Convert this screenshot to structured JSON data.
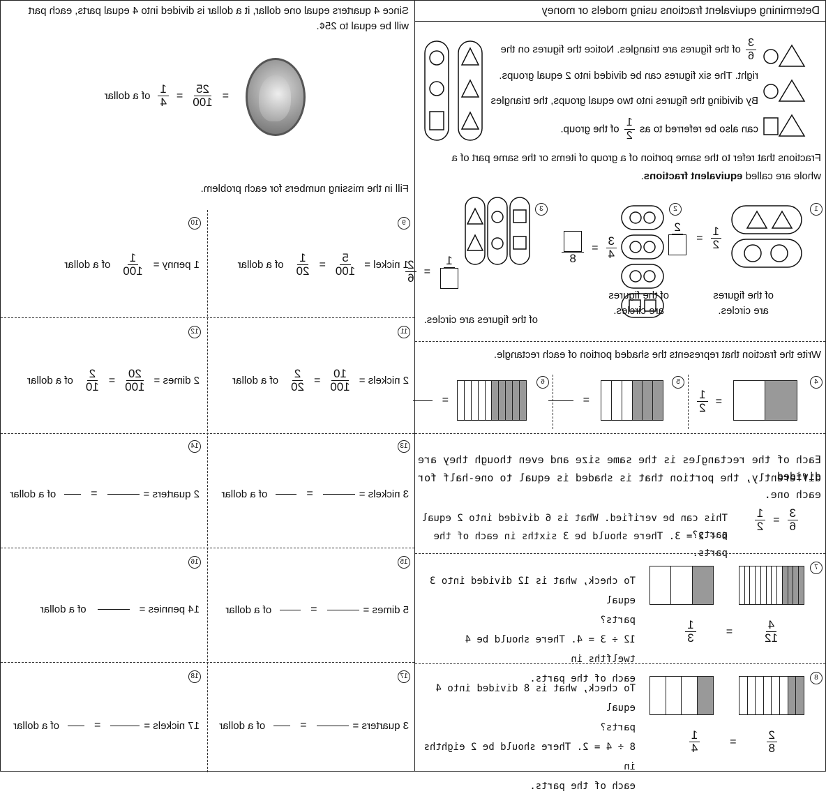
{
  "right": {
    "title": "Determining equivalent fractions using models or money",
    "intro1": {
      "n": "3",
      "d": "6",
      "text": "of the figures are triangles. Notice the figures on the"
    },
    "intro2": "right. The six figures can be divided into 2 equal groups.",
    "intro3": "By dividing the figures into two equal groups, the triangles",
    "intro4": {
      "pre": "can also be referred to as",
      "n": "1",
      "d": "2",
      "post": "of the group."
    },
    "def1": "Fractions that refer to the same portion of a group of items or the same part of a",
    "def2_pre": "whole are called",
    "def2_bold": "equivalent fractions",
    "def2_post": ".",
    "p1": {
      "num": "1",
      "n": "1",
      "d": "2",
      "eq": "=",
      "n2": "2",
      "cap1": "of the figures",
      "cap2": "are circles."
    },
    "p2": {
      "num": "2",
      "n": "3",
      "d": "4",
      "eq": "=",
      "d2": "8",
      "cap1": "of the figures",
      "cap2": "are circles."
    },
    "p3": {
      "num": "3",
      "n": "1",
      "eq": "=",
      "n2": "2",
      "d2": "6",
      "cap": "of the figures are circles."
    },
    "write_instr": "Write the fraction that represents the shaded portion of each rectangle.",
    "p4": {
      "num": "4",
      "eq": "=",
      "n": "1",
      "d": "2"
    },
    "p5": {
      "num": "5",
      "eq": "="
    },
    "p6": {
      "num": "6",
      "eq": "="
    },
    "each1": "Each of the rectangles is the same size and even though they are divided",
    "each2": "differently, the portion that is shaded is equal to one-half for each one.",
    "verify": {
      "n": "3",
      "d": "6",
      "eq": "=",
      "n2": "1",
      "d2": "2",
      "line1": "This can be verified. What is 6 divided into 2 equal parts?",
      "line2": "6 ÷ 2 = 3. There should be 3 sixths in each of the parts."
    },
    "p7": {
      "num": "7",
      "n": "4",
      "d": "12",
      "eq": "=",
      "n2": "1",
      "d2": "3",
      "l1": "To check, what is 12 divided into 3 equal",
      "l2": "parts?",
      "l3": "12 ÷ 3 = 4. There should be 4 twelfths in",
      "l4": "each of the parts."
    },
    "p8": {
      "num": "8",
      "n": "2",
      "d": "8",
      "eq": "=",
      "n2": "1",
      "d2": "4",
      "l1": "To check, what is 8 divided into 4 equal",
      "l2": "parts?",
      "l3": "8 ÷ 4 = 2. There should be 2 eighths in",
      "l4": "each of the parts."
    }
  },
  "left": {
    "since1": "Since 4 quarters equal one dollar, it a dollar is divided into 4 equal parts, each part",
    "since2": "will be equal to 25¢.",
    "coin_eq": {
      "eq": "=",
      "n": "25",
      "d": "100",
      "eq2": "=",
      "n2": "1",
      "d2": "4",
      "post": "of a dollar"
    },
    "fill_instr": "Fill in the missing numbers for each problem.",
    "p9": {
      "num": "9",
      "lead": "1 nickel =",
      "n": "5",
      "d": "100",
      "eq": "=",
      "n2": "1",
      "d2": "20",
      "post": "of a dollar"
    },
    "p10": {
      "num": "10",
      "lead": "1 penny =",
      "n": "1",
      "d": "100",
      "post": "of a dollar"
    },
    "p11": {
      "num": "11",
      "lead": "2 nickels =",
      "n": "10",
      "d": "100",
      "eq": "=",
      "n2": "2",
      "d2": "20",
      "post": "of a dollar"
    },
    "p12": {
      "num": "12",
      "lead": "2 dimes =",
      "n": "20",
      "d": "100",
      "eq": "=",
      "n2": "2",
      "d2": "10",
      "post": "of a dollar"
    },
    "p13": {
      "num": "13",
      "lead": "3 nickels =",
      "eq": "=",
      "post": "of a dollar"
    },
    "p14": {
      "num": "14",
      "lead": "2 quarters =",
      "eq": "=",
      "post": "of a dollar"
    },
    "p15": {
      "num": "15",
      "lead": "5 dimes =",
      "eq": "=",
      "post": "of a dollar"
    },
    "p16": {
      "num": "16",
      "lead": "14 pennies =",
      "post": "of a dollar"
    },
    "p17": {
      "num": "17",
      "lead": "3 quarters =",
      "eq": "=",
      "post": "of a dollar"
    },
    "p18": {
      "num": "18",
      "lead": "17 nickels =",
      "eq": "=",
      "post": "of a dollar"
    }
  }
}
